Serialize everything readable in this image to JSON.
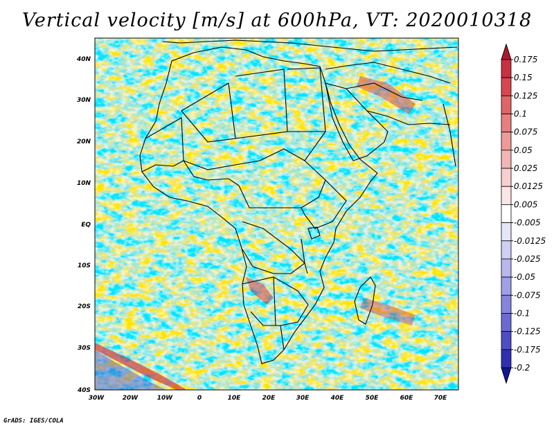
{
  "title": "Vertical velocity [m/s] at 600hPa, VT: 2020010318",
  "footer": "GrADS: IGES/COLA",
  "map": {
    "region": "Africa",
    "lon_range": [
      -30,
      76
    ],
    "lat_range": [
      -40,
      46
    ],
    "lat_ticks": [
      "40N",
      "30N",
      "20N",
      "10N",
      "EQ",
      "10S",
      "20S",
      "30S",
      "40S"
    ],
    "lon_ticks": [
      "30W",
      "20W",
      "10W",
      "0",
      "10E",
      "20E",
      "30E",
      "40E",
      "50E",
      "60E",
      "70E"
    ]
  },
  "colorbar": {
    "labels": [
      "0.175",
      "0.15",
      "0.125",
      "0.1",
      "0.075",
      "0.05",
      "0.025",
      "0.0125",
      "0.005",
      "-0.005",
      "-0.0125",
      "-0.025",
      "-0.05",
      "-0.075",
      "-0.1",
      "-0.125",
      "-0.175",
      "-0.2"
    ],
    "colors": [
      "#b2182b",
      "#c8313f",
      "#d6474f",
      "#e06565",
      "#e87f7f",
      "#ee9a9a",
      "#f3b5b5",
      "#f8cfcf",
      "#fbe6e6",
      "#ffffff",
      "#e6e6fb",
      "#cfcff5",
      "#b8b8ee",
      "#a0a0e6",
      "#8585dd",
      "#6a6ad2",
      "#4d4dc4",
      "#2f2fb0",
      "#14149a"
    ]
  }
}
